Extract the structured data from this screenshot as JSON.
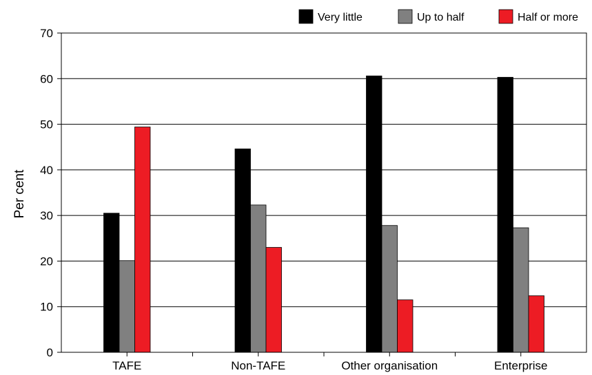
{
  "chart_data": {
    "type": "bar",
    "title": "",
    "xlabel": "",
    "ylabel": "Per cent",
    "ylim": [
      0,
      70
    ],
    "yticks": [
      0,
      10,
      20,
      30,
      40,
      50,
      60,
      70
    ],
    "grid": "horizontal",
    "legend_position": "top-right",
    "categories": [
      "TAFE",
      "Non-TAFE",
      "Other organisation",
      "Enterprise"
    ],
    "series": [
      {
        "name": "Very little",
        "color": "#000000",
        "values": [
          30.5,
          44.6,
          60.6,
          60.3
        ]
      },
      {
        "name": "Up to half",
        "color": "#808080",
        "values": [
          20.1,
          32.3,
          27.8,
          27.3
        ]
      },
      {
        "name": "Half or more",
        "color": "#ed1c24",
        "values": [
          49.4,
          23.0,
          11.5,
          12.4
        ]
      }
    ]
  }
}
